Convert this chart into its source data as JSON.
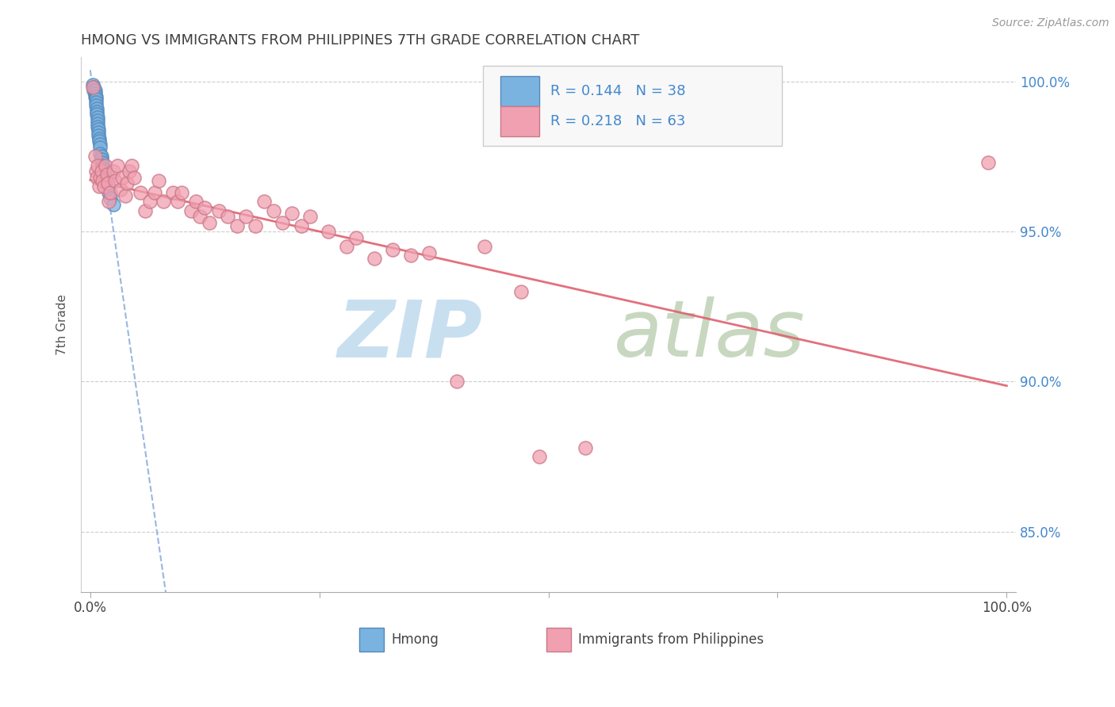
{
  "title": "HMONG VS IMMIGRANTS FROM PHILIPPINES 7TH GRADE CORRELATION CHART",
  "title_color": "#404040",
  "source_text": "Source: ZipAtlas.com",
  "ylabel": "7th Grade",
  "ylabel_color": "#555555",
  "ylim": [
    0.83,
    1.008
  ],
  "yticks": [
    0.85,
    0.9,
    0.95,
    1.0
  ],
  "ytick_labels_right": [
    "85.0%",
    "90.0%",
    "95.0%",
    "100.0%"
  ],
  "xtick_labels": [
    "0.0%",
    "",
    "",
    "",
    "100.0%"
  ],
  "blue_color": "#7bb3e0",
  "blue_edge": "#5588bb",
  "pink_color": "#f0a0b0",
  "pink_edge": "#cc7788",
  "trend_blue_color": "#88aadd",
  "trend_pink_color": "#e06070",
  "right_axis_color": "#4488cc",
  "watermark_zip_color": "#c8dff0",
  "watermark_atlas_color": "#c8d8c0",
  "legend_box_color": "#f8f8f8",
  "legend_edge_color": "#cccccc",
  "legend_text_color": "#4488cc",
  "hmong_x": [
    0.003,
    0.004,
    0.004,
    0.005,
    0.005,
    0.005,
    0.006,
    0.006,
    0.006,
    0.006,
    0.007,
    0.007,
    0.007,
    0.008,
    0.008,
    0.008,
    0.008,
    0.009,
    0.009,
    0.009,
    0.01,
    0.01,
    0.011,
    0.011,
    0.011,
    0.012,
    0.012,
    0.013,
    0.013,
    0.014,
    0.015,
    0.016,
    0.017,
    0.018,
    0.019,
    0.02,
    0.022,
    0.025
  ],
  "hmong_y": [
    0.999,
    0.998,
    0.997,
    0.997,
    0.996,
    0.995,
    0.995,
    0.994,
    0.993,
    0.992,
    0.991,
    0.99,
    0.989,
    0.988,
    0.987,
    0.986,
    0.985,
    0.984,
    0.983,
    0.982,
    0.981,
    0.98,
    0.979,
    0.978,
    0.976,
    0.975,
    0.974,
    0.973,
    0.972,
    0.971,
    0.97,
    0.969,
    0.968,
    0.966,
    0.965,
    0.963,
    0.961,
    0.959
  ],
  "phil_x": [
    0.003,
    0.005,
    0.006,
    0.007,
    0.008,
    0.01,
    0.011,
    0.012,
    0.013,
    0.015,
    0.017,
    0.018,
    0.019,
    0.02,
    0.022,
    0.025,
    0.027,
    0.03,
    0.033,
    0.035,
    0.038,
    0.04,
    0.043,
    0.045,
    0.048,
    0.055,
    0.06,
    0.065,
    0.07,
    0.075,
    0.08,
    0.09,
    0.095,
    0.1,
    0.11,
    0.115,
    0.12,
    0.125,
    0.13,
    0.14,
    0.15,
    0.16,
    0.17,
    0.18,
    0.19,
    0.2,
    0.21,
    0.22,
    0.23,
    0.24,
    0.26,
    0.28,
    0.29,
    0.31,
    0.33,
    0.35,
    0.37,
    0.4,
    0.43,
    0.47,
    0.49,
    0.54,
    0.98
  ],
  "phil_y": [
    0.998,
    0.975,
    0.97,
    0.968,
    0.972,
    0.965,
    0.968,
    0.97,
    0.967,
    0.965,
    0.972,
    0.969,
    0.966,
    0.96,
    0.963,
    0.97,
    0.967,
    0.972,
    0.964,
    0.968,
    0.962,
    0.966,
    0.97,
    0.972,
    0.968,
    0.963,
    0.957,
    0.96,
    0.963,
    0.967,
    0.96,
    0.963,
    0.96,
    0.963,
    0.957,
    0.96,
    0.955,
    0.958,
    0.953,
    0.957,
    0.955,
    0.952,
    0.955,
    0.952,
    0.96,
    0.957,
    0.953,
    0.956,
    0.952,
    0.955,
    0.95,
    0.945,
    0.948,
    0.941,
    0.944,
    0.942,
    0.943,
    0.9,
    0.945,
    0.93,
    0.875,
    0.878,
    0.973
  ]
}
